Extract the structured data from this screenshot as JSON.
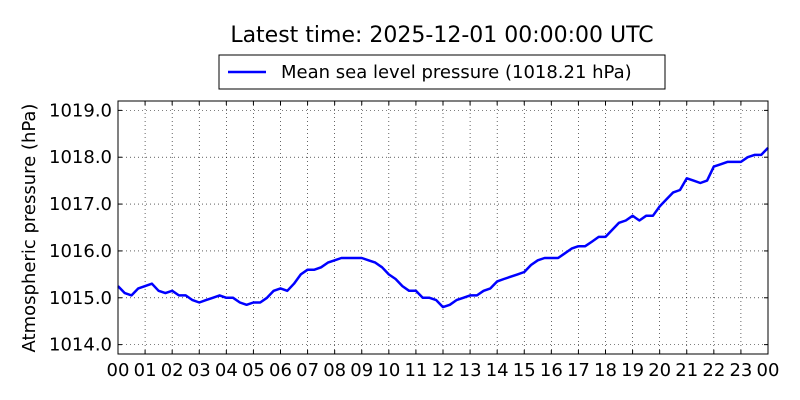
{
  "chart_data": {
    "type": "line",
    "title": "Latest time: 2025-12-01 00:00:00 UTC",
    "xlabel": "",
    "ylabel": "Atmospheric pressure (hPa)",
    "xlim": [
      0,
      24
    ],
    "ylim": [
      1013.8,
      1019.2
    ],
    "grid": true,
    "legend_position": "top-center",
    "x_tick_values": [
      0,
      1,
      2,
      3,
      4,
      5,
      6,
      7,
      8,
      9,
      10,
      11,
      12,
      13,
      14,
      15,
      16,
      17,
      18,
      19,
      20,
      21,
      22,
      23,
      24
    ],
    "x_tick_labels": [
      "00",
      "01",
      "02",
      "03",
      "04",
      "05",
      "06",
      "07",
      "08",
      "09",
      "10",
      "11",
      "12",
      "13",
      "14",
      "15",
      "16",
      "17",
      "18",
      "19",
      "20",
      "21",
      "22",
      "23",
      "00"
    ],
    "y_tick_values": [
      1014.0,
      1015.0,
      1016.0,
      1017.0,
      1018.0,
      1019.0
    ],
    "y_tick_labels": [
      "1014.0",
      "1015.0",
      "1016.0",
      "1017.0",
      "1018.0",
      "1019.0"
    ],
    "series": [
      {
        "name": "Mean sea level pressure (1018.21 hPa)",
        "color": "#0000ff",
        "x": [
          0,
          0.25,
          0.5,
          0.75,
          1.0,
          1.25,
          1.5,
          1.75,
          2.0,
          2.25,
          2.5,
          2.75,
          3.0,
          3.25,
          3.5,
          3.75,
          4.0,
          4.25,
          4.5,
          4.75,
          5.0,
          5.25,
          5.5,
          5.75,
          6.0,
          6.25,
          6.5,
          6.75,
          7.0,
          7.25,
          7.5,
          7.75,
          8.0,
          8.25,
          8.5,
          8.75,
          9.0,
          9.25,
          9.5,
          9.75,
          10.0,
          10.25,
          10.5,
          10.75,
          11.0,
          11.25,
          11.5,
          11.75,
          12.0,
          12.25,
          12.5,
          12.75,
          13.0,
          13.25,
          13.5,
          13.75,
          14.0,
          14.25,
          14.5,
          14.75,
          15.0,
          15.25,
          15.5,
          15.75,
          16.0,
          16.25,
          16.5,
          16.75,
          17.0,
          17.25,
          17.5,
          17.75,
          18.0,
          18.25,
          18.5,
          18.75,
          19.0,
          19.25,
          19.5,
          19.75,
          20.0,
          20.25,
          20.5,
          20.75,
          21.0,
          21.25,
          21.5,
          21.75,
          22.0,
          22.25,
          22.5,
          22.75,
          23.0,
          23.25,
          23.5,
          23.75,
          24.0
        ],
        "y": [
          1015.25,
          1015.1,
          1015.05,
          1015.2,
          1015.25,
          1015.3,
          1015.15,
          1015.1,
          1015.15,
          1015.05,
          1015.05,
          1014.95,
          1014.9,
          1014.95,
          1015.0,
          1015.05,
          1015.0,
          1015.0,
          1014.9,
          1014.85,
          1014.9,
          1014.9,
          1015.0,
          1015.15,
          1015.2,
          1015.15,
          1015.3,
          1015.5,
          1015.6,
          1015.6,
          1015.65,
          1015.75,
          1015.8,
          1015.85,
          1015.85,
          1015.85,
          1015.85,
          1015.8,
          1015.75,
          1015.65,
          1015.5,
          1015.4,
          1015.25,
          1015.15,
          1015.15,
          1015.0,
          1015.0,
          1014.95,
          1014.8,
          1014.85,
          1014.95,
          1015.0,
          1015.05,
          1015.05,
          1015.15,
          1015.2,
          1015.35,
          1015.4,
          1015.45,
          1015.5,
          1015.55,
          1015.7,
          1015.8,
          1015.85,
          1015.85,
          1015.85,
          1015.95,
          1016.05,
          1016.1,
          1016.1,
          1016.2,
          1016.3,
          1016.3,
          1016.45,
          1016.6,
          1016.65,
          1016.75,
          1016.65,
          1016.75,
          1016.75,
          1016.95,
          1017.1,
          1017.25,
          1017.3,
          1017.55,
          1017.5,
          1017.45,
          1017.5,
          1017.8,
          1017.85,
          1017.9,
          1017.9,
          1017.9,
          1018.0,
          1018.05,
          1018.05,
          1018.2
        ]
      }
    ]
  }
}
